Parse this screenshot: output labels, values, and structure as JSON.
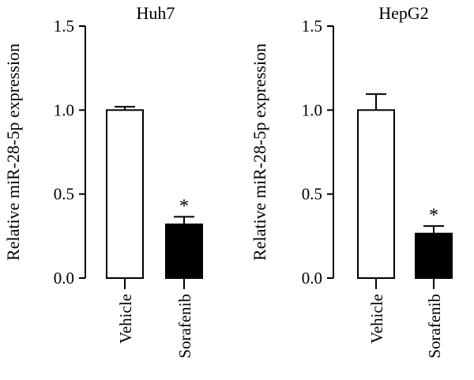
{
  "chart_data": [
    {
      "type": "bar",
      "title": "Huh7",
      "ylabel": "Relative miR-28-5p expression",
      "ylim": [
        0,
        1.5
      ],
      "yticks": [
        "0.0",
        "0.5",
        "1.0",
        "1.5"
      ],
      "categories": [
        "Vehicle",
        "Sorafenib"
      ],
      "values": [
        1.0,
        0.32
      ],
      "errors": [
        0.02,
        0.045
      ],
      "fills": [
        "#ffffff",
        "#000000"
      ],
      "annotations": [
        "",
        "*"
      ]
    },
    {
      "type": "bar",
      "title": "HepG2",
      "ylabel": "Relative miR-28-5p expression",
      "ylim": [
        0,
        1.5
      ],
      "yticks": [
        "0.0",
        "0.5",
        "1.0",
        "1.5"
      ],
      "categories": [
        "Vehicle",
        "Sorafenib"
      ],
      "values": [
        1.0,
        0.265
      ],
      "errors": [
        0.095,
        0.045
      ],
      "fills": [
        "#ffffff",
        "#000000"
      ],
      "annotations": [
        "",
        "*"
      ]
    }
  ]
}
